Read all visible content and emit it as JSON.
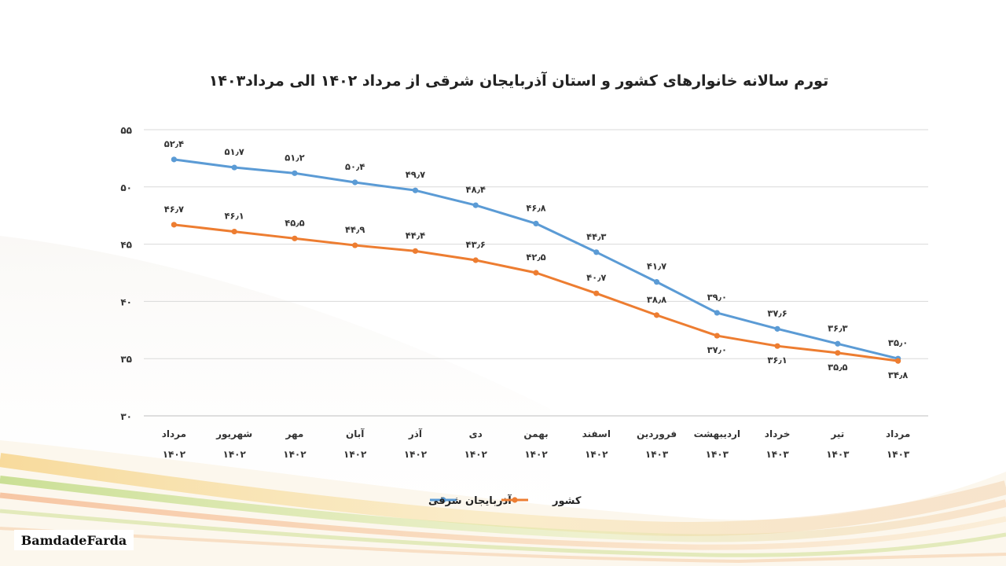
{
  "watermark": "BamdadeFarda",
  "colors": {
    "series_azerbaijan": "#5B9BD5",
    "series_country": "#ED7D31",
    "grid": "#D9D9D9"
  },
  "chart_data": {
    "type": "line",
    "title": "تورم سالانه خانوارهای کشور و استان آذربایجان شرقی از مرداد ۱۴۰۲ الی مرداد۱۴۰۳",
    "categories": [
      [
        "مرداد",
        "۱۴۰۲"
      ],
      [
        "شهریور",
        "۱۴۰۲"
      ],
      [
        "مهر",
        "۱۴۰۲"
      ],
      [
        "آبان",
        "۱۴۰۲"
      ],
      [
        "آذر",
        "۱۴۰۲"
      ],
      [
        "دی",
        "۱۴۰۲"
      ],
      [
        "بهمن",
        "۱۴۰۲"
      ],
      [
        "اسفند",
        "۱۴۰۲"
      ],
      [
        "فروردین",
        "۱۴۰۳"
      ],
      [
        "اردیبهشت",
        "۱۴۰۳"
      ],
      [
        "خرداد",
        "۱۴۰۳"
      ],
      [
        "تیر",
        "۱۴۰۳"
      ],
      [
        "مرداد",
        "۱۴۰۳"
      ]
    ],
    "ylim": [
      30,
      55
    ],
    "yticks": [
      30,
      35,
      40,
      45,
      50,
      55
    ],
    "ytick_labels": [
      "۳۰",
      "۳۵",
      "۴۰",
      "۴۵",
      "۵۰",
      "۵۵"
    ],
    "grid": true,
    "legend_position": "bottom",
    "series": [
      {
        "name": "آذربایجان شرقی",
        "color": "#5B9BD5",
        "values": [
          52.4,
          51.7,
          51.2,
          50.4,
          49.7,
          48.4,
          46.8,
          44.3,
          41.7,
          39.0,
          37.6,
          36.3,
          35.0
        ],
        "labels": [
          "۵۲٫۴",
          "۵۱٫۷",
          "۵۱٫۲",
          "۵۰٫۴",
          "۴۹٫۷",
          "۴۸٫۴",
          "۴۶٫۸",
          "۴۴٫۳",
          "۴۱٫۷",
          "۳۹٫۰",
          "۳۷٫۶",
          "۳۶٫۳",
          "۳۵٫۰"
        ]
      },
      {
        "name": "کشور",
        "color": "#ED7D31",
        "values": [
          46.7,
          46.1,
          45.5,
          44.9,
          44.4,
          43.6,
          42.5,
          40.7,
          38.8,
          37.0,
          36.1,
          35.5,
          34.8
        ],
        "labels": [
          "۴۶٫۷",
          "۴۶٫۱",
          "۴۵٫۵",
          "۴۴٫۹",
          "۴۴٫۴",
          "۴۳٫۶",
          "۴۲٫۵",
          "۴۰٫۷",
          "۳۸٫۸",
          "۳۷٫۰",
          "۳۶٫۱",
          "۳۵٫۵",
          "۳۴٫۸"
        ]
      }
    ]
  }
}
